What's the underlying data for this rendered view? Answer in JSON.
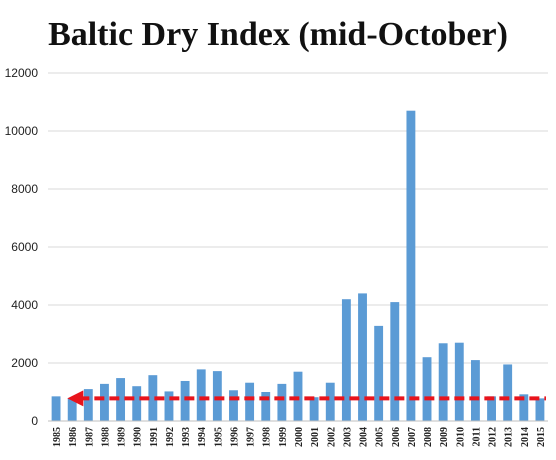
{
  "chart_data": {
    "type": "bar",
    "title": "Baltic Dry Index (mid-October)",
    "xlabel": "",
    "ylabel": "",
    "ylim": [
      0,
      12000
    ],
    "yticks": [
      0,
      2000,
      4000,
      6000,
      8000,
      10000,
      12000
    ],
    "grid": true,
    "legend": "none",
    "bar_color": "#5b9bd5",
    "arrow_color": "#e8141c",
    "arrow_level": 780,
    "categories": [
      "1985",
      "1986",
      "1987",
      "1988",
      "1989",
      "1990",
      "1991",
      "1992",
      "1993",
      "1994",
      "1995",
      "1996",
      "1997",
      "1998",
      "1999",
      "2000",
      "2001",
      "2002",
      "2003",
      "2004",
      "2005",
      "2006",
      "2007",
      "2008",
      "2009",
      "2010",
      "2011",
      "2012",
      "2013",
      "2014",
      "2015"
    ],
    "values": [
      850,
      780,
      1100,
      1280,
      1480,
      1200,
      1580,
      1020,
      1380,
      1780,
      1720,
      1060,
      1320,
      1000,
      1280,
      1700,
      820,
      1320,
      4200,
      4400,
      3280,
      4100,
      10700,
      2200,
      2680,
      2700,
      2100,
      850,
      1950,
      920,
      780
    ]
  }
}
